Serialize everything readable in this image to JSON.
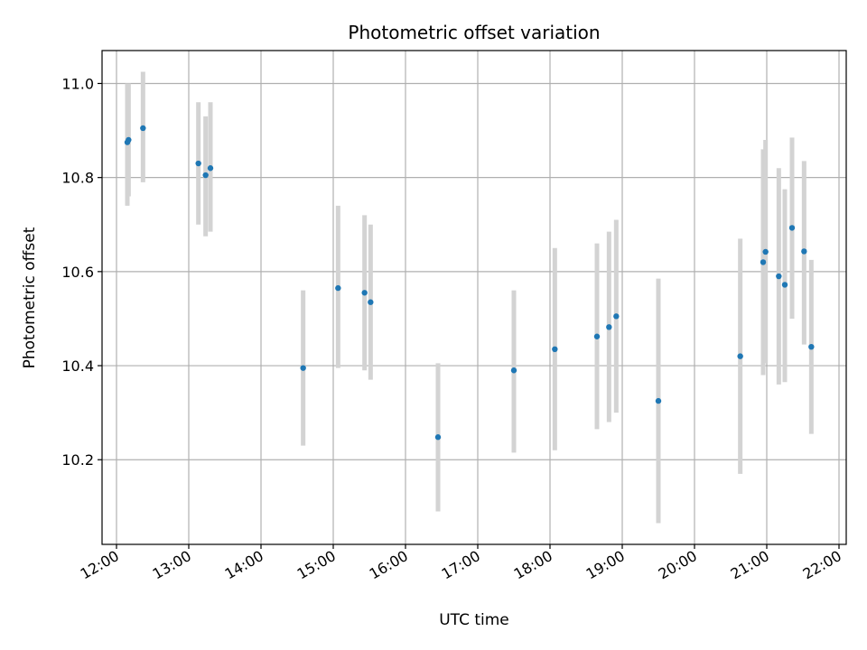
{
  "chart_data": {
    "type": "scatter",
    "title": "Photometric offset variation",
    "xlabel": "UTC time",
    "ylabel": "Photometric offset",
    "x_ticks": [
      "12:00",
      "13:00",
      "14:00",
      "15:00",
      "16:00",
      "17:00",
      "18:00",
      "19:00",
      "20:00",
      "21:00",
      "22:00"
    ],
    "y_ticks": [
      "10.2",
      "10.4",
      "10.6",
      "10.8",
      "11.0"
    ],
    "xlim": [
      "11:48",
      "22:06"
    ],
    "ylim": [
      10.02,
      11.07
    ],
    "grid": true,
    "colors": {
      "point": "#1f77b4",
      "errorbar": "#d3d3d3",
      "grid": "#b0b0b0"
    },
    "points": [
      {
        "x": "12:09",
        "y": 10.875,
        "err_low": 10.74,
        "err_high": 11.0
      },
      {
        "x": "12:10",
        "y": 10.88,
        "err_low": 10.76,
        "err_high": 11.0
      },
      {
        "x": "12:22",
        "y": 10.905,
        "err_low": 10.79,
        "err_high": 11.025
      },
      {
        "x": "13:08",
        "y": 10.83,
        "err_low": 10.7,
        "err_high": 10.96
      },
      {
        "x": "13:14",
        "y": 10.805,
        "err_low": 10.675,
        "err_high": 10.93
      },
      {
        "x": "13:18",
        "y": 10.82,
        "err_low": 10.685,
        "err_high": 10.96
      },
      {
        "x": "14:35",
        "y": 10.395,
        "err_low": 10.23,
        "err_high": 10.56
      },
      {
        "x": "15:04",
        "y": 10.565,
        "err_low": 10.395,
        "err_high": 10.74
      },
      {
        "x": "15:26",
        "y": 10.555,
        "err_low": 10.39,
        "err_high": 10.72
      },
      {
        "x": "15:31",
        "y": 10.535,
        "err_low": 10.37,
        "err_high": 10.7
      },
      {
        "x": "16:27",
        "y": 10.248,
        "err_low": 10.09,
        "err_high": 10.405
      },
      {
        "x": "17:30",
        "y": 10.39,
        "err_low": 10.215,
        "err_high": 10.56
      },
      {
        "x": "18:04",
        "y": 10.435,
        "err_low": 10.22,
        "err_high": 10.65
      },
      {
        "x": "18:39",
        "y": 10.462,
        "err_low": 10.265,
        "err_high": 10.66
      },
      {
        "x": "18:49",
        "y": 10.482,
        "err_low": 10.28,
        "err_high": 10.685
      },
      {
        "x": "18:55",
        "y": 10.505,
        "err_low": 10.3,
        "err_high": 10.71
      },
      {
        "x": "19:30",
        "y": 10.325,
        "err_low": 10.065,
        "err_high": 10.585
      },
      {
        "x": "20:38",
        "y": 10.42,
        "err_low": 10.17,
        "err_high": 10.67
      },
      {
        "x": "20:57",
        "y": 10.62,
        "err_low": 10.38,
        "err_high": 10.86
      },
      {
        "x": "20:59",
        "y": 10.642,
        "err_low": 10.405,
        "err_high": 10.88
      },
      {
        "x": "21:10",
        "y": 10.59,
        "err_low": 10.36,
        "err_high": 10.82
      },
      {
        "x": "21:15",
        "y": 10.572,
        "err_low": 10.365,
        "err_high": 10.775
      },
      {
        "x": "21:21",
        "y": 10.693,
        "err_low": 10.5,
        "err_high": 10.885
      },
      {
        "x": "21:31",
        "y": 10.643,
        "err_low": 10.445,
        "err_high": 10.835
      },
      {
        "x": "21:37",
        "y": 10.44,
        "err_low": 10.255,
        "err_high": 10.625
      }
    ]
  }
}
